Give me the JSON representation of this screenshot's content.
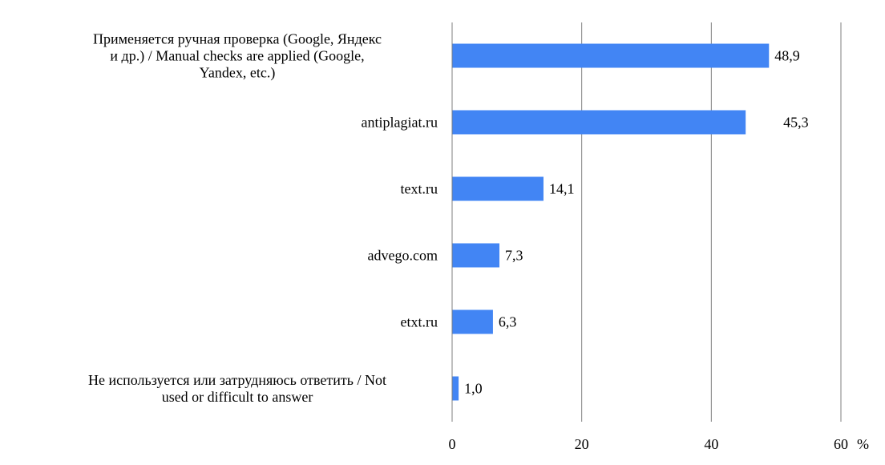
{
  "chart_data": {
    "type": "bar",
    "orientation": "horizontal",
    "categories": [
      [
        "Применяется ручная проверка (Google, Яндекс",
        "и др.) / Manual checks are applied (Google,",
        "Yandex, etc.)"
      ],
      [
        "antiplagiat.ru"
      ],
      [
        "text.ru"
      ],
      [
        "advego.com"
      ],
      [
        "etxt.ru"
      ],
      [
        "Не используется или затрудняюсь ответить / Not",
        "used or difficult to answer"
      ]
    ],
    "values": [
      48.9,
      45.3,
      14.1,
      7.3,
      6.3,
      1.0
    ],
    "value_labels": [
      "48,9",
      "45,3",
      "14,1",
      "7,3",
      "6,3",
      "1,0"
    ],
    "xlim": [
      0,
      60
    ],
    "xticks": [
      0,
      20,
      40,
      60
    ],
    "xtick_labels": [
      "0",
      "20",
      "40",
      "60"
    ],
    "x_unit": "%",
    "grid": "vertical",
    "legend": "none",
    "colors": {
      "bar": "#4285f4",
      "grid": "#7f7f7f",
      "axis": "#7f7f7f",
      "text": "#000000"
    }
  }
}
